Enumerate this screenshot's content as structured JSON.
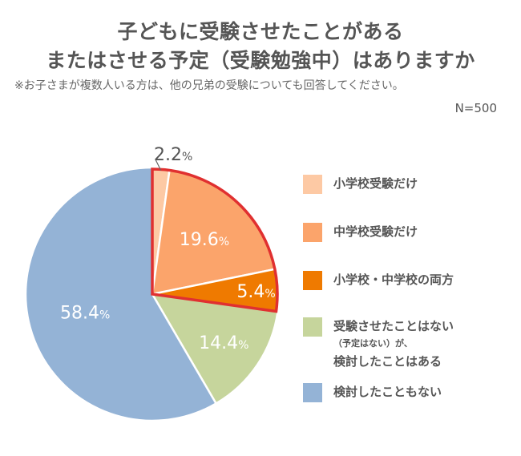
{
  "title_line1": "子どもに受験させたことがある",
  "title_line2": "またはさせる予定（受験勉強中）はありますか",
  "note": "※お子さまが複数人いる方は、他の兄弟の受験についても回答してください。",
  "sample_size": "N=500",
  "chart_data": {
    "type": "pie",
    "title": "子どもに受験させたことがある またはさせる予定（受験勉強中）はありますか",
    "start_angle_deg": 0,
    "direction": "clockwise",
    "highlighted_categories": [
      "小学校受験だけ",
      "中学校受験だけ",
      "小学校・中学校の両方"
    ],
    "highlight_color": "#e03030",
    "slices": [
      {
        "label": "小学校受験だけ",
        "value": 2.2,
        "display": "2.2",
        "unit": "%",
        "color": "#fdc9a4"
      },
      {
        "label": "中学校受験だけ",
        "value": 19.6,
        "display": "19.6",
        "unit": "%",
        "color": "#fba46b"
      },
      {
        "label": "小学校・中学校の両方",
        "value": 5.4,
        "display": "5.4",
        "unit": "%",
        "color": "#ef7a00"
      },
      {
        "label": "受験させたことはない（予定はない）が、検討したことはある",
        "value": 14.4,
        "display": "14.4",
        "unit": "%",
        "color": "#c6d59c"
      },
      {
        "label": "検討したこともない",
        "value": 58.4,
        "display": "58.4",
        "unit": "%",
        "color": "#94b3d6"
      }
    ]
  },
  "legend": [
    {
      "lines": [
        "小学校受験だけ"
      ],
      "color": "#fdc9a4"
    },
    {
      "lines": [
        "中学校受験だけ"
      ],
      "color": "#fba46b"
    },
    {
      "lines": [
        "小学校・中学校の両方"
      ],
      "color": "#ef7a00"
    },
    {
      "lines": [
        "受験させたことはない",
        "（予定はない）が、",
        "検討したことはある"
      ],
      "color": "#c6d59c"
    },
    {
      "lines": [
        "検討したこともない"
      ],
      "color": "#94b3d6"
    }
  ]
}
